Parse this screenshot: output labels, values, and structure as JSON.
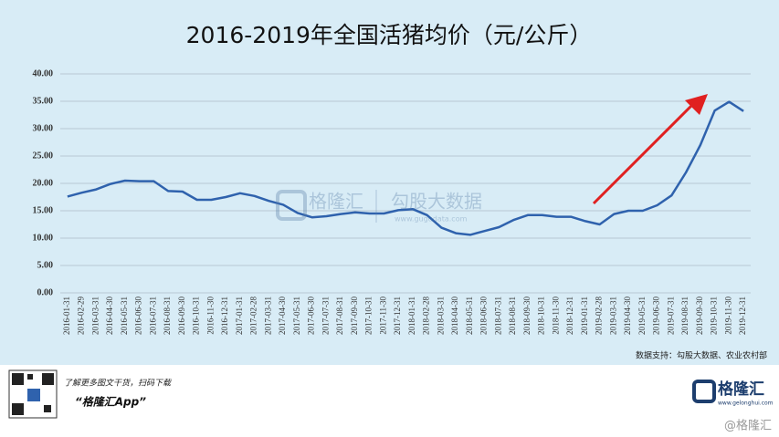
{
  "chart_data": {
    "type": "line",
    "title": "2016-2019年全国活猪均价（元/公斤）",
    "categories": [
      "2016-01-31",
      "2016-02-29",
      "2016-03-31",
      "2016-04-30",
      "2016-05-31",
      "2016-06-30",
      "2016-07-31",
      "2016-08-31",
      "2016-09-30",
      "2016-10-31",
      "2016-11-30",
      "2016-12-31",
      "2017-01-31",
      "2017-02-28",
      "2017-03-31",
      "2017-04-30",
      "2017-05-31",
      "2017-06-30",
      "2017-07-31",
      "2017-08-31",
      "2017-09-30",
      "2017-10-31",
      "2017-11-30",
      "2017-12-31",
      "2018-01-31",
      "2018-02-28",
      "2018-03-31",
      "2018-04-30",
      "2018-05-31",
      "2018-06-30",
      "2018-07-31",
      "2018-08-31",
      "2018-09-30",
      "2018-10-31",
      "2018-11-30",
      "2018-12-31",
      "2019-01-31",
      "2019-02-28",
      "2019-03-31",
      "2019-04-30",
      "2019-05-31",
      "2019-06-30",
      "2019-07-31",
      "2019-08-31",
      "2019-09-30",
      "2019-10-31",
      "2019-11-30",
      "2019-12-31"
    ],
    "values": [
      17.6,
      18.3,
      18.9,
      19.9,
      20.5,
      20.4,
      20.4,
      18.6,
      18.5,
      17.0,
      17.0,
      17.5,
      18.2,
      17.7,
      16.8,
      16.1,
      14.6,
      13.8,
      14.0,
      14.4,
      14.7,
      14.5,
      14.5,
      15.1,
      15.3,
      14.2,
      11.9,
      10.9,
      10.6,
      11.3,
      12.0,
      13.3,
      14.2,
      14.2,
      13.9,
      13.9,
      13.1,
      12.5,
      14.4,
      15.0,
      15.0,
      16.0,
      17.8,
      22.0,
      27.0,
      33.3,
      34.9,
      33.2
    ],
    "color": "#2f62ad",
    "ylim": [
      0,
      40
    ],
    "yticks": [
      {
        "value": 0,
        "label": "0.00"
      },
      {
        "value": 5,
        "label": "5.00"
      },
      {
        "value": 10,
        "label": "10.00"
      },
      {
        "value": 15,
        "label": "15.00"
      },
      {
        "value": 20,
        "label": "20.00"
      },
      {
        "value": 25,
        "label": "25.00"
      },
      {
        "value": 30,
        "label": "30.00"
      },
      {
        "value": 35,
        "label": "35.00"
      },
      {
        "value": 40,
        "label": "40.00"
      }
    ],
    "grid": true,
    "source": "数据支持：勾股大数据、农业农村部"
  },
  "watermark": {
    "brand": "格隆汇",
    "partner": "勾股大数据",
    "partner_url": "www.gugudata.com"
  },
  "footer": {
    "tagline": "了解更多图文干货，扫码下载",
    "app": "“格隆汇App”",
    "logo": "格隆汇",
    "logo_url": "www.gelonghui.com",
    "corner": "@格隆汇"
  }
}
